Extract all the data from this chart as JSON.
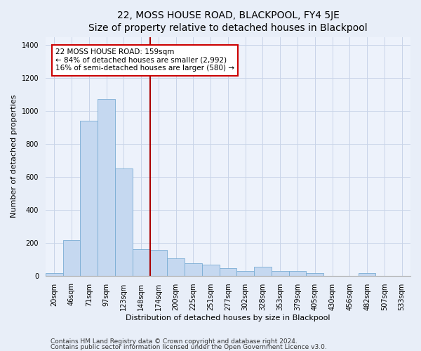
{
  "title": "22, MOSS HOUSE ROAD, BLACKPOOL, FY4 5JE",
  "subtitle": "Size of property relative to detached houses in Blackpool",
  "xlabel": "Distribution of detached houses by size in Blackpool",
  "ylabel": "Number of detached properties",
  "categories": [
    "20sqm",
    "46sqm",
    "71sqm",
    "97sqm",
    "123sqm",
    "148sqm",
    "174sqm",
    "200sqm",
    "225sqm",
    "251sqm",
    "277sqm",
    "302sqm",
    "328sqm",
    "353sqm",
    "379sqm",
    "405sqm",
    "430sqm",
    "456sqm",
    "482sqm",
    "507sqm",
    "533sqm"
  ],
  "values": [
    18,
    215,
    940,
    1075,
    650,
    160,
    155,
    105,
    75,
    65,
    45,
    30,
    55,
    30,
    30,
    15,
    0,
    0,
    15,
    0,
    0
  ],
  "bar_color": "#c5d8f0",
  "bar_edgecolor": "#7aadd4",
  "vline_x": 5.5,
  "vline_color": "#aa0000",
  "annotation_box_text": "22 MOSS HOUSE ROAD: 159sqm\n← 84% of detached houses are smaller (2,992)\n16% of semi-detached houses are larger (580) →",
  "footer1": "Contains HM Land Registry data © Crown copyright and database right 2024.",
  "footer2": "Contains public sector information licensed under the Open Government Licence v3.0.",
  "ylim": [
    0,
    1450
  ],
  "yticks": [
    0,
    200,
    400,
    600,
    800,
    1000,
    1200,
    1400
  ],
  "title_fontsize": 10,
  "axis_label_fontsize": 8,
  "tick_fontsize": 7,
  "footer_fontsize": 6.5,
  "bg_color": "#e8eef8",
  "plot_bg_color": "#edf2fb"
}
